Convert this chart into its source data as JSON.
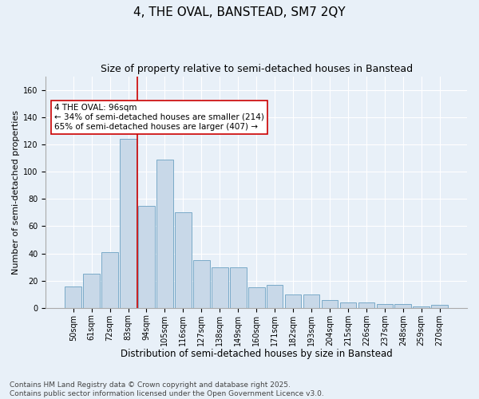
{
  "title": "4, THE OVAL, BANSTEAD, SM7 2QY",
  "subtitle": "Size of property relative to semi-detached houses in Banstead",
  "xlabel": "Distribution of semi-detached houses by size in Banstead",
  "ylabel": "Number of semi-detached properties",
  "bar_color": "#c8d8e8",
  "bar_edge_color": "#7aaac8",
  "background_color": "#e8f0f8",
  "categories": [
    "50sqm",
    "61sqm",
    "72sqm",
    "83sqm",
    "94sqm",
    "105sqm",
    "116sqm",
    "127sqm",
    "138sqm",
    "149sqm",
    "160sqm",
    "171sqm",
    "182sqm",
    "193sqm",
    "204sqm",
    "215sqm",
    "226sqm",
    "237sqm",
    "248sqm",
    "259sqm",
    "270sqm"
  ],
  "values": [
    16,
    25,
    41,
    124,
    75,
    109,
    70,
    35,
    30,
    30,
    15,
    17,
    10,
    10,
    6,
    4,
    4,
    3,
    3,
    1,
    2
  ],
  "ylim": [
    0,
    170
  ],
  "yticks": [
    0,
    20,
    40,
    60,
    80,
    100,
    120,
    140,
    160
  ],
  "annotation_text_line1": "4 THE OVAL: 96sqm",
  "annotation_text_line2": "← 34% of semi-detached houses are smaller (214)",
  "annotation_text_line3": "65% of semi-detached houses are larger (407) →",
  "vline_color": "#cc0000",
  "vline_bin_index": 4,
  "annotation_box_facecolor": "#ffffff",
  "annotation_box_edgecolor": "#cc0000",
  "footer_line1": "Contains HM Land Registry data © Crown copyright and database right 2025.",
  "footer_line2": "Contains public sector information licensed under the Open Government Licence v3.0.",
  "title_fontsize": 11,
  "subtitle_fontsize": 9,
  "annotation_fontsize": 7.5,
  "footer_fontsize": 6.5,
  "xlabel_fontsize": 8.5,
  "ylabel_fontsize": 8,
  "tick_fontsize": 7,
  "grid_color": "#ffffff"
}
